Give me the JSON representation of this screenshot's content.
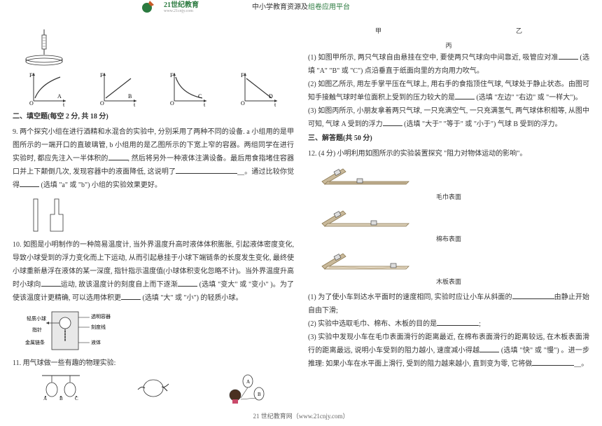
{
  "header": {
    "logo_main": "21世纪教育",
    "logo_sub": "www.21cnjy.com",
    "title_plain": "中小学教育资源及",
    "title_accent": "组卷应用平台"
  },
  "footer": "21 世纪教育网（www.21cnjy.com）",
  "left": {
    "graphs": {
      "labels": [
        "A",
        "B",
        "C",
        "D"
      ],
      "axis_x": "t",
      "axis_y": "F",
      "origin": "O"
    },
    "section2": "二、填空题(每空 2 分, 共 18 分)",
    "q9": "9. 两个探究小组在进行酒精和水混合的实验中, 分别采用了两种不同的设备. a 小组用的是甲图所示的一端开口的直玻璃管, b 小组用的是乙图所示的下宽上窄的容器。两组同学在进行实验时, 都应先注入一半体积的____, 然后将另外一种液体注满设备。最后用食指堵住容器口并上下颠倒几次, 发现容器中的液面降低, 这说明了________________。通过比较你觉得____ (选填 \"a\" 或 \"b\") 小组的实验效果更好。",
    "q10": "10. 如图是小明制作的一种简易温度计, 当外界温度升高时液体体积膨胀, 引起液体密度变化, 导致小球受到的浮力变化而上下运动, 从而引起悬挂于小球下端链条的长度发生变化, 最终使小球重新悬浮在液体的某一深度, 指针指示温度值(小球体积变化忽略不计)。当外界温度升高时小球向____运动, 故该温度计的刻度自上而下逐渐____ (选填 \"变大\" 或 \"变小\" )。为了使该温度计更精确, 可以选用体积更____ (选填 \"大\" 或 \"小\") 的轻质小球。",
    "fig10_labels": {
      "ball": "轻质小球",
      "pointer": "指针",
      "chain": "金属链条",
      "container": "透明容器",
      "scale": "刻度线",
      "liquid": "液体"
    },
    "q11": "11. 用气球做一些有趣的物理实验:"
  },
  "right": {
    "caption_row": [
      "甲",
      "乙"
    ],
    "caption_row2": "丙",
    "q11_1": "(1) 如图甲所示, 两只气球自由悬挂在空中, 要使两只气球向中间靠近, 吸管应对准____ (选填 \"A\" \"B\" 或 \"C\") 点沿垂直于纸面向里的方向用力吹气。",
    "q11_2": "(2) 如图乙所示, 用左手掌平压在气球上, 用右手的食指顶住气球, 气球处于静止状态。由图可知手接触气球时单位面积上受到的压力较大的是____ (选填 \"左边\" \"右边\" 或 \"一样大\")。",
    "q11_3": "(3) 如图丙所示, 小朋友拿着两只气球, 一只充满空气, 一只充满氢气, 两气球体积相等, 从图中可知, 气球 A 受到的浮力____ (选填 \"大于\" \"等于\" 或 \"小于\") 气球 B 受到的浮力。",
    "section3": "三、解答题(共 50 分)",
    "q12": "12. (4 分) 小明利用如图所示的实验装置探究 \"阻力对物体运动的影响\"。",
    "surf1": "毛巾表面",
    "surf2": "棉布表面",
    "surf3": "木板表面",
    "q12_1": "(1) 为了使小车到达水平面时的速度相同, 实验时应让小车从斜面的__________由静止开始自由下滑;",
    "q12_2": "(2) 实验中选取毛巾、棉布、木板的目的是__________;",
    "q12_3": "(3) 实验中发现小车在毛巾表面滑行的距离最近, 在棉布表面滑行的距离较远, 在木板表面滑行的距离最远, 说明小车受到的阻力越小, 速度减小得越____ (选填 \"快\" 或 \"慢\") 。进一步推理: 如果小车在水平面上滑行, 受到的阻力越来越小, 直到变为零, 它将做____________。"
  },
  "colors": {
    "accent": "#2b7a3f",
    "text": "#333333",
    "line": "#333333",
    "ramp_fill": "#c9b99a",
    "ramp_stroke": "#8a7852"
  }
}
